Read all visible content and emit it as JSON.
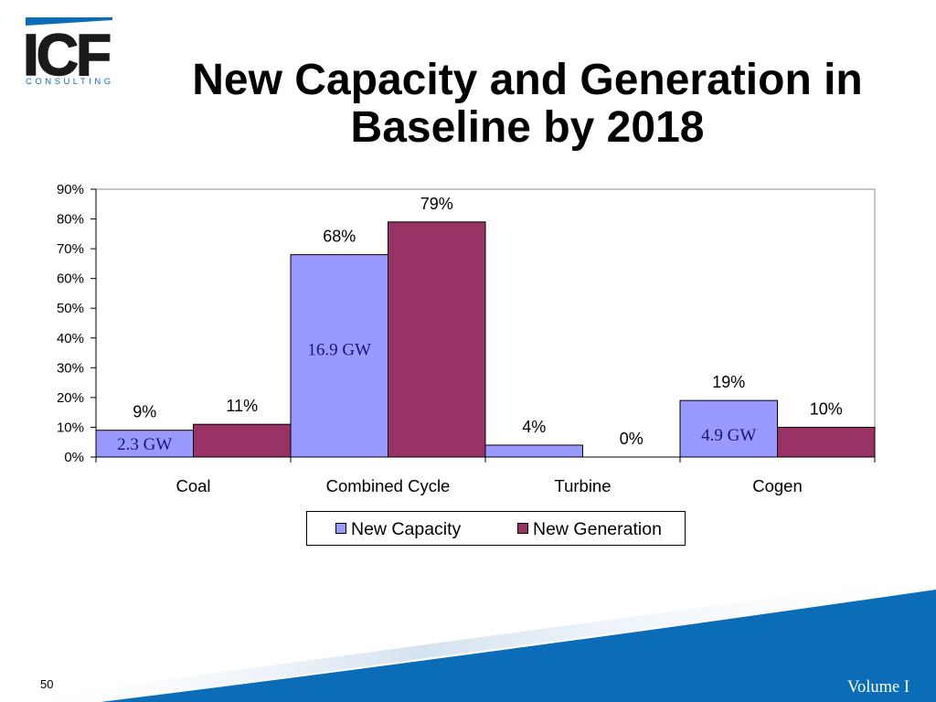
{
  "logo": {
    "wordmark": "ICF",
    "tagline": "CONSULTING"
  },
  "theme": {
    "brand_blue": "#0B6DB7"
  },
  "chart_data": {
    "type": "bar",
    "title": "New Capacity and Generation in Baseline by 2018",
    "categories": [
      "Coal",
      "Combined Cycle",
      "Turbine",
      "Cogen"
    ],
    "series": [
      {
        "name": "New Capacity",
        "values": [
          9,
          68,
          4,
          19
        ],
        "labels": [
          "9%",
          "68%",
          "4%",
          "19%"
        ],
        "inner_labels": [
          "2.3 GW",
          "16.9 GW",
          null,
          "4.9 GW"
        ],
        "color": "#9999FF"
      },
      {
        "name": "New Generation",
        "values": [
          11,
          79,
          0,
          10
        ],
        "labels": [
          "11%",
          "79%",
          "0%",
          "10%"
        ],
        "color": "#993366"
      }
    ],
    "ylim": [
      0,
      90
    ],
    "y_ticks": [
      {
        "value": 0,
        "label": "0%"
      },
      {
        "value": 10,
        "label": "10%"
      },
      {
        "value": 20,
        "label": "20%"
      },
      {
        "value": 30,
        "label": "30%"
      },
      {
        "value": 40,
        "label": "40%"
      },
      {
        "value": 50,
        "label": "50%"
      },
      {
        "value": 60,
        "label": "60%"
      },
      {
        "value": 70,
        "label": "70%"
      },
      {
        "value": 80,
        "label": "80%"
      },
      {
        "value": 90,
        "label": "90%"
      }
    ],
    "grid": false,
    "legend": "bottom"
  },
  "footer": {
    "page_number": "50",
    "volume": "Volume I"
  }
}
